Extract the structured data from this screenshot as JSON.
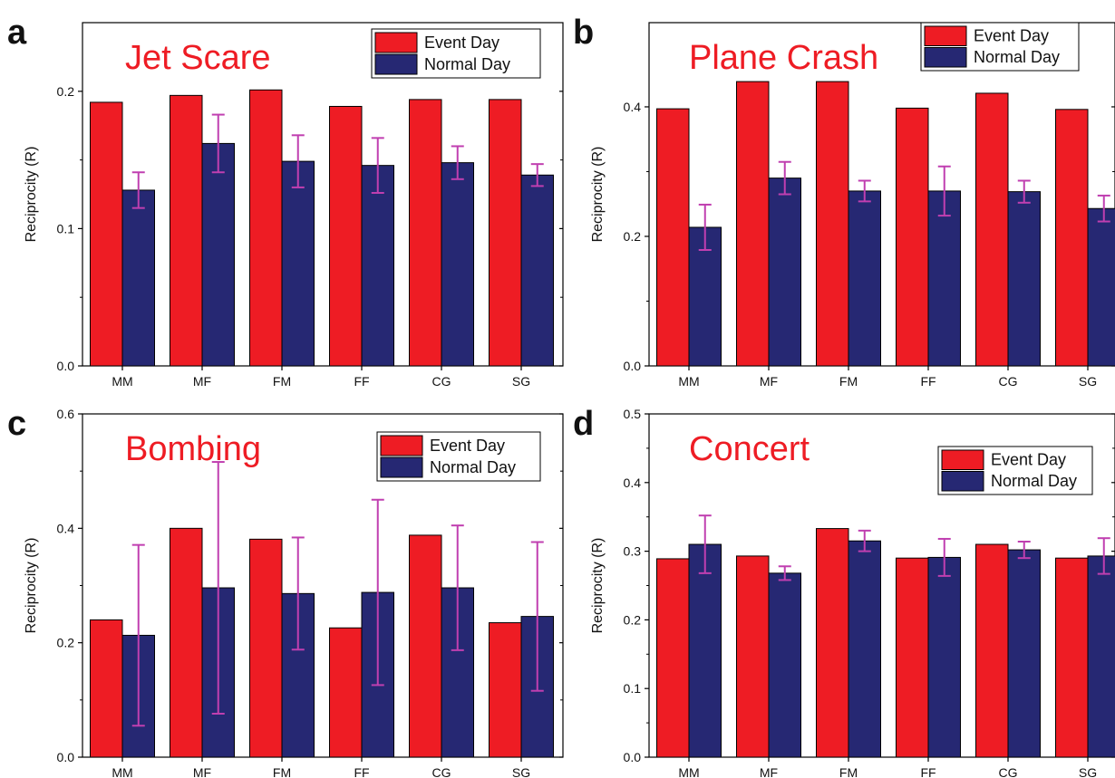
{
  "colors": {
    "event": "#ee1c24",
    "normal": "#262873",
    "error": "#c03fb0",
    "title": "#ee1c24"
  },
  "chart_data": [
    {
      "type": "bar",
      "panel_letter": "a",
      "title": "Jet Scare",
      "ylabel": "Reciprocity (R)",
      "ylim": [
        0,
        0.25
      ],
      "yticks": [
        0,
        0.1,
        0.2
      ],
      "ytick_labels": [
        "0.0",
        "0.1",
        "0.2"
      ],
      "categories": [
        "MM",
        "MF",
        "FM",
        "FF",
        "CG",
        "SG"
      ],
      "legend_position": "top-right",
      "series": [
        {
          "name": "Event Day",
          "values": [
            0.192,
            0.197,
            0.201,
            0.189,
            0.194,
            0.194
          ]
        },
        {
          "name": "Normal Day",
          "values": [
            0.128,
            0.162,
            0.149,
            0.146,
            0.148,
            0.139
          ],
          "errors": [
            0.013,
            0.021,
            0.019,
            0.02,
            0.012,
            0.008
          ]
        }
      ]
    },
    {
      "type": "bar",
      "panel_letter": "b",
      "title": "Plane Crash",
      "ylabel": "Reciprocity (R)",
      "ylim": [
        0,
        0.53
      ],
      "yticks": [
        0,
        0.2,
        0.4
      ],
      "ytick_labels": [
        "0.0",
        "0.2",
        "0.4"
      ],
      "categories": [
        "MM",
        "MF",
        "FM",
        "FF",
        "CG",
        "SG"
      ],
      "legend_position": "top-right",
      "series": [
        {
          "name": "Event Day",
          "values": [
            0.397,
            0.439,
            0.439,
            0.398,
            0.421,
            0.396
          ]
        },
        {
          "name": "Normal Day",
          "values": [
            0.214,
            0.29,
            0.27,
            0.27,
            0.269,
            0.243
          ],
          "errors": [
            0.035,
            0.025,
            0.016,
            0.038,
            0.017,
            0.02
          ]
        }
      ]
    },
    {
      "type": "bar",
      "panel_letter": "c",
      "title": "Bombing",
      "ylabel": "Reciprocity (R)",
      "ylim": [
        0,
        0.6
      ],
      "yticks": [
        0,
        0.2,
        0.4,
        0.6
      ],
      "ytick_labels": [
        "0.0",
        "0.2",
        "0.4",
        "0.6"
      ],
      "categories": [
        "MM",
        "MF",
        "FM",
        "FF",
        "CG",
        "SG"
      ],
      "legend_position": "top-right",
      "series": [
        {
          "name": "Event Day",
          "values": [
            0.24,
            0.4,
            0.381,
            0.226,
            0.388,
            0.235
          ]
        },
        {
          "name": "Normal Day",
          "values": [
            0.213,
            0.296,
            0.286,
            0.288,
            0.296,
            0.246
          ],
          "errors": [
            0.158,
            0.22,
            0.098,
            0.162,
            0.109,
            0.13
          ]
        }
      ]
    },
    {
      "type": "bar",
      "panel_letter": "d",
      "title": "Concert",
      "ylabel": "Reciprocity (R)",
      "ylim": [
        0,
        0.5
      ],
      "yticks": [
        0,
        0.1,
        0.2,
        0.3,
        0.4,
        0.5
      ],
      "ytick_labels": [
        "0.0",
        "0.1",
        "0.2",
        "0.3",
        "0.4",
        "0.5"
      ],
      "categories": [
        "MM",
        "MF",
        "FM",
        "FF",
        "CG",
        "SG"
      ],
      "legend_position": "top-right",
      "series": [
        {
          "name": "Event Day",
          "values": [
            0.289,
            0.293,
            0.333,
            0.29,
            0.31,
            0.29
          ]
        },
        {
          "name": "Normal Day",
          "values": [
            0.31,
            0.268,
            0.315,
            0.291,
            0.302,
            0.293
          ],
          "errors": [
            0.042,
            0.01,
            0.015,
            0.027,
            0.012,
            0.026
          ]
        }
      ]
    }
  ]
}
